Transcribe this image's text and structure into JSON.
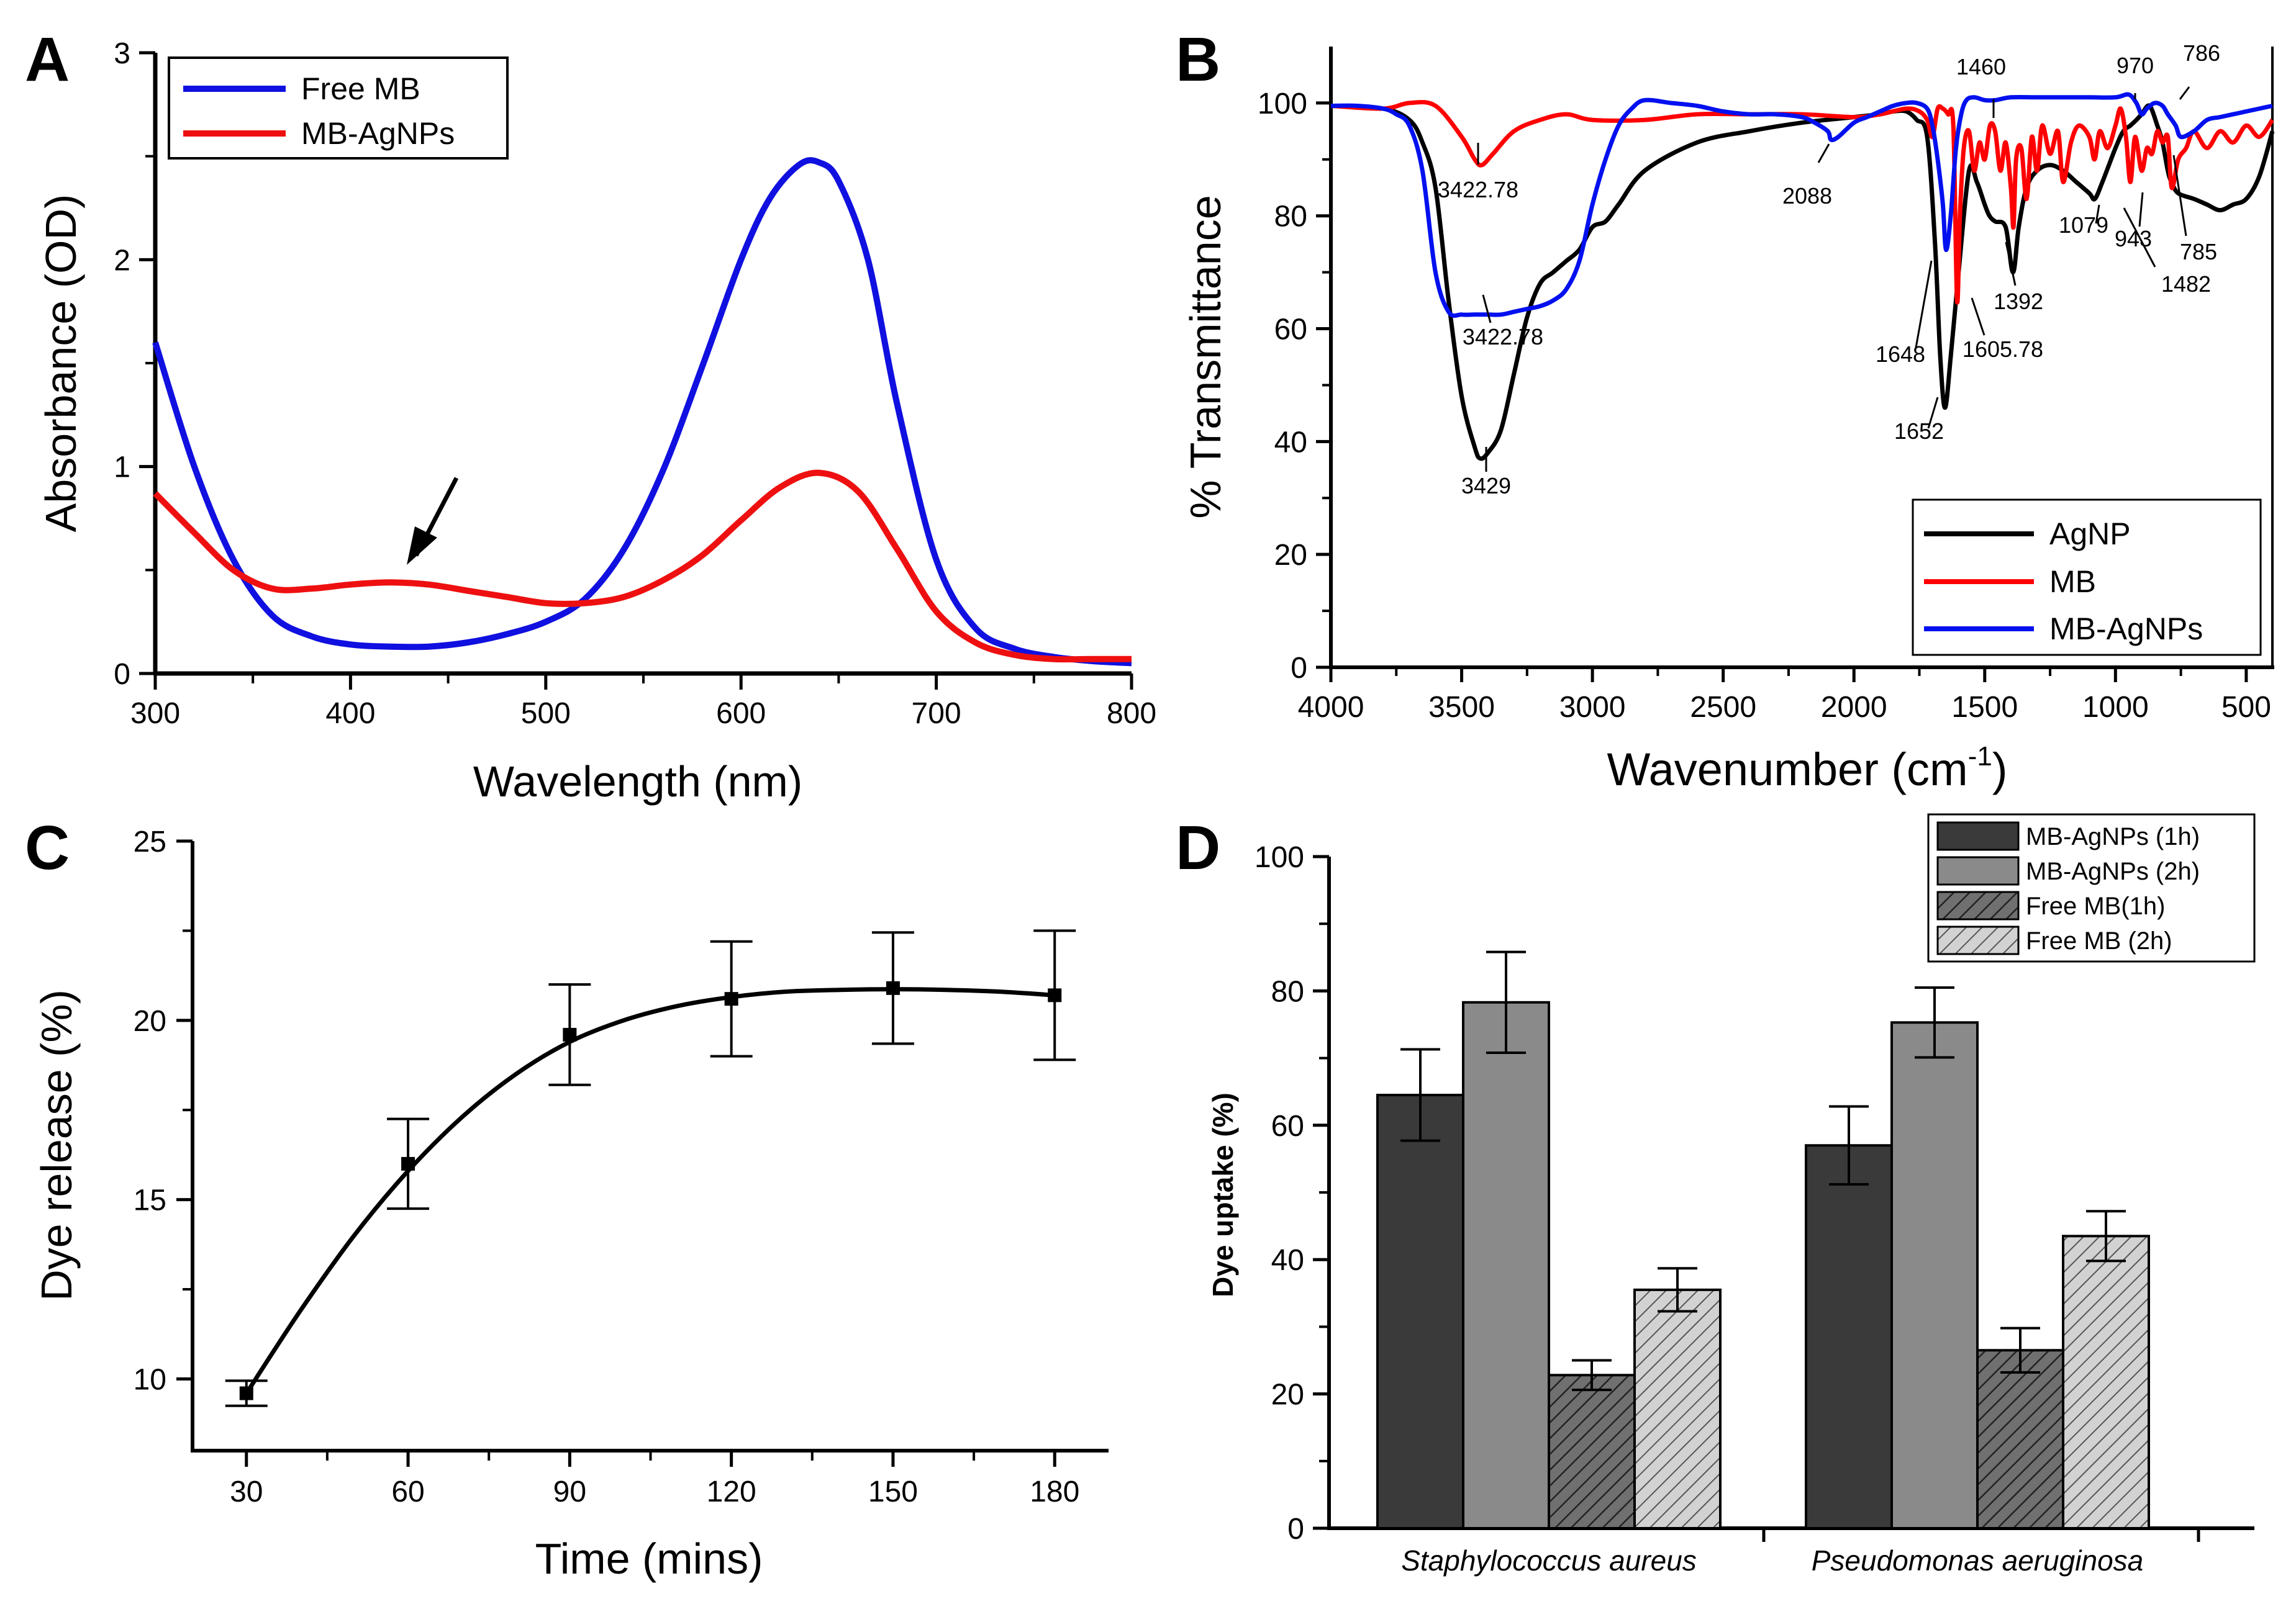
{
  "chart_data": [
    {
      "panel": "A",
      "type": "line",
      "xlabel": "Wavelength (nm)",
      "ylabel": "Absorbance (OD)",
      "xlim": [
        300,
        800
      ],
      "ylim": [
        0,
        3
      ],
      "xticks": [
        "300",
        "400",
        "500",
        "600",
        "700",
        "800"
      ],
      "yticks": [
        "0",
        "1",
        "2",
        "3"
      ],
      "legend": [
        "Free MB",
        "MB-AgNPs"
      ],
      "series": [
        {
          "name": "Free MB",
          "color": "#1010e0",
          "x": [
            300,
            320,
            340,
            360,
            380,
            400,
            420,
            440,
            460,
            480,
            500,
            520,
            540,
            560,
            580,
            600,
            615,
            630,
            640,
            650,
            665,
            680,
            700,
            720,
            740,
            760,
            780,
            800
          ],
          "y": [
            1.6,
            1.0,
            0.55,
            0.28,
            0.18,
            0.14,
            0.13,
            0.13,
            0.15,
            0.19,
            0.25,
            0.36,
            0.6,
            0.98,
            1.48,
            2.0,
            2.3,
            2.46,
            2.47,
            2.38,
            2.0,
            1.3,
            0.55,
            0.22,
            0.12,
            0.08,
            0.06,
            0.05
          ]
        },
        {
          "name": "MB-AgNPs",
          "color": "#ee1010",
          "x": [
            300,
            320,
            340,
            360,
            380,
            400,
            420,
            440,
            460,
            480,
            500,
            520,
            540,
            560,
            580,
            600,
            620,
            640,
            660,
            680,
            700,
            720,
            740,
            760,
            780,
            800
          ],
          "y": [
            0.87,
            0.68,
            0.5,
            0.41,
            0.41,
            0.43,
            0.44,
            0.43,
            0.4,
            0.37,
            0.34,
            0.34,
            0.37,
            0.45,
            0.57,
            0.74,
            0.9,
            0.97,
            0.88,
            0.6,
            0.3,
            0.15,
            0.09,
            0.07,
            0.07,
            0.07
          ]
        }
      ],
      "annotations": [
        {
          "type": "arrow",
          "x": 425,
          "y": 0.45
        }
      ]
    },
    {
      "panel": "B",
      "type": "line",
      "xlabel": "Wavenumber (cm",
      "xlabel_sup": "-1",
      "xlabel_end": ")",
      "ylabel": "% Transmittance",
      "xlim": [
        4000,
        400
      ],
      "ylim": [
        0,
        110
      ],
      "xticks": [
        "4000",
        "3500",
        "3000",
        "2500",
        "2000",
        "1500",
        "1000",
        "500"
      ],
      "yticks": [
        "0",
        "20",
        "40",
        "60",
        "80",
        "100"
      ],
      "legend": [
        "AgNP",
        "MB",
        "MB-AgNPs"
      ],
      "series": [
        {
          "name": "AgNP",
          "color": "#000000",
          "x": [
            4000,
            3800,
            3700,
            3650,
            3600,
            3550,
            3500,
            3450,
            3429,
            3400,
            3350,
            3300,
            3250,
            3200,
            3150,
            3100,
            3050,
            3000,
            2950,
            2900,
            2800,
            2600,
            2400,
            2200,
            2000,
            1900,
            1850,
            1800,
            1760,
            1720,
            1690,
            1670,
            1652,
            1630,
            1600,
            1560,
            1530,
            1500,
            1482,
            1460,
            1420,
            1392,
            1370,
            1340,
            1300,
            1250,
            1200,
            1150,
            1100,
            1079,
            1050,
            1000,
            970,
            943,
            920,
            900,
            870,
            840,
            820,
            800,
            786,
            760,
            700,
            650,
            600,
            550,
            500,
            450,
            400
          ],
          "y": [
            99.5,
            99,
            97,
            93,
            85,
            65,
            48,
            39,
            37,
            38,
            42,
            52,
            62,
            68,
            70,
            72,
            74,
            78,
            79,
            82,
            88,
            93,
            95,
            96.5,
            97.5,
            98,
            98.5,
            98.5,
            97,
            94,
            75,
            55,
            46,
            55,
            70,
            88,
            86,
            82,
            80,
            79,
            78,
            70,
            78,
            85,
            88,
            89,
            88,
            86,
            84,
            83,
            86,
            92,
            95,
            96,
            97,
            98,
            99.5,
            96,
            93,
            88,
            86,
            84,
            83,
            82,
            81,
            82,
            83,
            87,
            95
          ]
        },
        {
          "name": "MB",
          "color": "#ff0000",
          "x": [
            4000,
            3800,
            3700,
            3600,
            3500,
            3450,
            3422.78,
            3380,
            3300,
            3200,
            3100,
            3000,
            2800,
            2600,
            2400,
            2200,
            2000,
            1900,
            1800,
            1750,
            1720,
            1700,
            1680,
            1660,
            1640,
            1620,
            1605.78,
            1595,
            1580,
            1560,
            1540,
            1520,
            1500,
            1480,
            1460,
            1440,
            1420,
            1400,
            1390,
            1380,
            1360,
            1340,
            1320,
            1300,
            1280,
            1250,
            1220,
            1200,
            1170,
            1140,
            1100,
            1080,
            1060,
            1030,
            1000,
            980,
            960,
            943,
            925,
            900,
            880,
            860,
            840,
            820,
            800,
            785,
            760,
            730,
            700,
            650,
            600,
            550,
            500,
            450,
            400
          ],
          "y": [
            99.5,
            99,
            100,
            99.5,
            94,
            90,
            89,
            91,
            95,
            97,
            98,
            97,
            97,
            98,
            98,
            98,
            97.5,
            98,
            99,
            98.5,
            97,
            94,
            99,
            99,
            98,
            96,
            65,
            80,
            92,
            95,
            88,
            93,
            90,
            96,
            95,
            88,
            93,
            85,
            78,
            90,
            92,
            83,
            94,
            88,
            96,
            91,
            95,
            86,
            93,
            96,
            94,
            90,
            95,
            92,
            96,
            99,
            94,
            86,
            94,
            88,
            92,
            91,
            95,
            93,
            94,
            85,
            90,
            92,
            95,
            92,
            95,
            93,
            96,
            94,
            97
          ]
        },
        {
          "name": "MB-AgNPs",
          "color": "#0010ee",
          "x": [
            4000,
            3900,
            3800,
            3750,
            3700,
            3650,
            3600,
            3550,
            3500,
            3450,
            3400,
            3350,
            3300,
            3250,
            3200,
            3150,
            3100,
            3050,
            3000,
            2950,
            2900,
            2850,
            2800,
            2700,
            2600,
            2500,
            2400,
            2300,
            2200,
            2150,
            2100,
            2088,
            2060,
            2000,
            1950,
            1900,
            1850,
            1800,
            1760,
            1720,
            1700,
            1680,
            1660,
            1648,
            1630,
            1610,
            1590,
            1570,
            1540,
            1500,
            1460,
            1400,
            1300,
            1200,
            1100,
            1000,
            950,
            920,
            900,
            880,
            850,
            820,
            800,
            770,
            750,
            700,
            650,
            600,
            550,
            500,
            450,
            400
          ],
          "y": [
            99.5,
            99.5,
            99,
            98,
            96,
            88,
            70,
            63,
            62.5,
            62.5,
            62.5,
            62.5,
            63,
            63.5,
            64,
            65,
            67,
            72,
            82,
            90,
            96,
            99,
            100.5,
            100,
            99.5,
            98.5,
            98,
            98,
            97.5,
            96.5,
            95,
            93.5,
            94,
            96.5,
            97.5,
            98.5,
            99.5,
            100,
            100,
            99,
            96,
            90,
            82,
            74,
            80,
            92,
            98,
            100.5,
            101,
            100.5,
            100.5,
            101,
            101,
            101,
            101,
            101,
            101.5,
            100,
            98,
            99,
            100,
            99.5,
            98,
            96,
            94,
            95,
            97,
            97.5,
            98,
            98.5,
            99,
            99.5
          ]
        }
      ],
      "annotations": [
        "3422.78",
        "2088",
        "1460",
        "970",
        "786",
        "1079",
        "943",
        "785",
        "1482",
        "1392",
        "1648",
        "1605.78",
        "3422.78",
        "1652",
        "3429"
      ]
    },
    {
      "panel": "C",
      "type": "scatter",
      "xlabel": "Time (mins)",
      "ylabel": "Dye release (%)",
      "xlim": [
        20,
        190
      ],
      "ylim": [
        8,
        25
      ],
      "xticks": [
        "30",
        "60",
        "90",
        "120",
        "150",
        "180"
      ],
      "yticks": [
        "10",
        "15",
        "20",
        "25"
      ],
      "x": [
        30,
        60,
        90,
        120,
        150,
        180
      ],
      "y": [
        9.6,
        16.0,
        19.6,
        20.6,
        20.9,
        20.7
      ],
      "err": [
        0.35,
        1.25,
        1.4,
        1.6,
        1.55,
        1.8
      ],
      "fit_x": [
        30,
        40,
        50,
        60,
        70,
        80,
        90,
        100,
        110,
        120,
        130,
        140,
        150,
        160,
        170,
        180
      ],
      "fit_y": [
        9.6,
        11.9,
        14.0,
        15.8,
        17.3,
        18.5,
        19.4,
        20.0,
        20.4,
        20.65,
        20.8,
        20.85,
        20.87,
        20.85,
        20.8,
        20.7
      ]
    },
    {
      "panel": "D",
      "type": "bar",
      "ylabel": "Dye uptake (%)",
      "ylim": [
        0,
        100
      ],
      "yticks": [
        "0",
        "20",
        "40",
        "60",
        "80",
        "100"
      ],
      "categories": [
        "Staphylococcus aureus",
        "Pseudomonas aeruginosa"
      ],
      "series": [
        {
          "name": "MB-AgNPs (1h)",
          "values": [
            64.5,
            57.0
          ],
          "err": [
            6.8,
            5.8
          ],
          "color": "#3a3a3a",
          "hatch": false
        },
        {
          "name": "MB-AgNPs (2h)",
          "values": [
            78.3,
            75.3
          ],
          "err": [
            7.5,
            5.2
          ],
          "color": "#8a8a8a",
          "hatch": false
        },
        {
          "name": "Free MB(1h)",
          "values": [
            22.8,
            26.5
          ],
          "err": [
            2.2,
            3.3
          ],
          "color": "#707070",
          "hatch": true
        },
        {
          "name": "Free MB (2h)",
          "values": [
            35.5,
            43.5
          ],
          "err": [
            3.2,
            3.7
          ],
          "color": "#c8c8c8",
          "hatch": true
        }
      ]
    }
  ]
}
